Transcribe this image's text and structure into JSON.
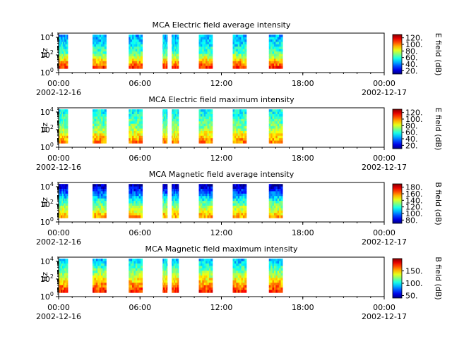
{
  "chart_data": [
    {
      "type": "heatmap",
      "title": "MCA  Electric field average intensity",
      "ylabel": "Hz",
      "yscale": "log",
      "ylim": [
        1,
        30000
      ],
      "yticks": [
        {
          "value": 1,
          "base": "10",
          "exp": "0"
        },
        {
          "value": 100,
          "base": "10",
          "exp": "2"
        },
        {
          "value": 10000,
          "base": "10",
          "exp": "4"
        }
      ],
      "xlim": [
        "2002-12-16 00:00",
        "2002-12-17 00:00"
      ],
      "xticks": [
        {
          "hour": 0,
          "label": "00:00",
          "date": "2002-12-16"
        },
        {
          "hour": 6,
          "label": "06:00",
          "date": ""
        },
        {
          "hour": 12,
          "label": "12:00",
          "date": ""
        },
        {
          "hour": 18,
          "label": "18:00",
          "date": ""
        },
        {
          "hour": 24,
          "label": "00:00",
          "date": "2002-12-17"
        }
      ],
      "minor_tick_hours": 1,
      "data_intervals_utc": [
        [
          "00:00",
          "00:40"
        ],
        [
          "02:30",
          "03:30"
        ],
        [
          "05:10",
          "06:10"
        ],
        [
          "07:40",
          "08:00"
        ],
        [
          "08:20",
          "08:50"
        ],
        [
          "10:20",
          "11:20"
        ],
        [
          "12:50",
          "13:50"
        ],
        [
          "15:30",
          "16:30"
        ]
      ],
      "data_freq_range_hz": [
        3,
        20000
      ],
      "colorbar": {
        "label": "E field (dB)",
        "range": [
          10,
          130
        ],
        "ticks": [
          "20.",
          "40.",
          "60.",
          "80.",
          "100.",
          "120."
        ],
        "tick_values": [
          20,
          40,
          60,
          80,
          100,
          120
        ]
      },
      "intensity_profile": {
        "low_freq": 110,
        "mid_freq": 60,
        "high_freq": 45
      }
    },
    {
      "type": "heatmap",
      "title": "MCA  Electric field maximum intensity",
      "ylabel": "Hz",
      "yscale": "log",
      "ylim": [
        1,
        30000
      ],
      "yticks": [
        {
          "value": 1,
          "base": "10",
          "exp": "0"
        },
        {
          "value": 100,
          "base": "10",
          "exp": "2"
        },
        {
          "value": 10000,
          "base": "10",
          "exp": "4"
        }
      ],
      "xlim": [
        "2002-12-16 00:00",
        "2002-12-17 00:00"
      ],
      "xticks": [
        {
          "hour": 0,
          "label": "00:00",
          "date": "2002-12-16"
        },
        {
          "hour": 6,
          "label": "06:00",
          "date": ""
        },
        {
          "hour": 12,
          "label": "12:00",
          "date": ""
        },
        {
          "hour": 18,
          "label": "18:00",
          "date": ""
        },
        {
          "hour": 24,
          "label": "00:00",
          "date": "2002-12-17"
        }
      ],
      "minor_tick_hours": 1,
      "data_intervals_utc": [
        [
          "00:00",
          "00:40"
        ],
        [
          "02:30",
          "03:30"
        ],
        [
          "05:10",
          "06:10"
        ],
        [
          "07:40",
          "08:00"
        ],
        [
          "08:20",
          "08:50"
        ],
        [
          "10:20",
          "11:20"
        ],
        [
          "12:50",
          "13:50"
        ],
        [
          "15:30",
          "16:30"
        ]
      ],
      "data_freq_range_hz": [
        3,
        20000
      ],
      "colorbar": {
        "label": "E field (dB)",
        "range": [
          10,
          130
        ],
        "ticks": [
          "20.",
          "40.",
          "60.",
          "80.",
          "100.",
          "120."
        ],
        "tick_values": [
          20,
          40,
          60,
          80,
          100,
          120
        ]
      },
      "intensity_profile": {
        "low_freq": 100,
        "mid_freq": 68,
        "high_freq": 55
      }
    },
    {
      "type": "heatmap",
      "title": "MCA  Magnetic field average intensity",
      "ylabel": "Hz",
      "yscale": "log",
      "ylim": [
        1,
        30000
      ],
      "yticks": [
        {
          "value": 1,
          "base": "10",
          "exp": "0"
        },
        {
          "value": 100,
          "base": "10",
          "exp": "2"
        },
        {
          "value": 10000,
          "base": "10",
          "exp": "4"
        }
      ],
      "xlim": [
        "2002-12-16 00:00",
        "2002-12-17 00:00"
      ],
      "xticks": [
        {
          "hour": 0,
          "label": "00:00",
          "date": "2002-12-16"
        },
        {
          "hour": 6,
          "label": "06:00",
          "date": ""
        },
        {
          "hour": 12,
          "label": "12:00",
          "date": ""
        },
        {
          "hour": 18,
          "label": "18:00",
          "date": ""
        },
        {
          "hour": 24,
          "label": "00:00",
          "date": "2002-12-17"
        }
      ],
      "minor_tick_hours": 1,
      "data_intervals_utc": [
        [
          "00:00",
          "00:40"
        ],
        [
          "02:30",
          "03:30"
        ],
        [
          "05:10",
          "06:10"
        ],
        [
          "07:40",
          "08:00"
        ],
        [
          "08:20",
          "08:50"
        ],
        [
          "10:20",
          "11:20"
        ],
        [
          "12:50",
          "13:50"
        ],
        [
          "15:30",
          "16:30"
        ]
      ],
      "data_freq_range_hz": [
        3,
        20000
      ],
      "colorbar": {
        "label": "B field (dB)",
        "range": [
          70,
          190
        ],
        "ticks": [
          "80.",
          "100.",
          "120.",
          "140.",
          "160.",
          "180."
        ],
        "tick_values": [
          80,
          100,
          120,
          140,
          160,
          180
        ]
      },
      "intensity_profile": {
        "low_freq": 155,
        "mid_freq": 120,
        "high_freq": 75
      }
    },
    {
      "type": "heatmap",
      "title": "MCA  Magnetic field maximum intensity",
      "ylabel": "Hz",
      "yscale": "log",
      "ylim": [
        1,
        30000
      ],
      "yticks": [
        {
          "value": 1,
          "base": "10",
          "exp": "0"
        },
        {
          "value": 100,
          "base": "10",
          "exp": "2"
        },
        {
          "value": 10000,
          "base": "10",
          "exp": "4"
        }
      ],
      "xlim": [
        "2002-12-16 00:00",
        "2002-12-17 00:00"
      ],
      "xticks": [
        {
          "hour": 0,
          "label": "00:00",
          "date": "2002-12-16"
        },
        {
          "hour": 6,
          "label": "06:00",
          "date": ""
        },
        {
          "hour": 12,
          "label": "12:00",
          "date": ""
        },
        {
          "hour": 18,
          "label": "18:00",
          "date": ""
        },
        {
          "hour": 24,
          "label": "00:00",
          "date": "2002-12-17"
        }
      ],
      "minor_tick_hours": 1,
      "data_intervals_utc": [
        [
          "00:00",
          "00:40"
        ],
        [
          "02:30",
          "03:30"
        ],
        [
          "05:10",
          "06:10"
        ],
        [
          "07:40",
          "08:00"
        ],
        [
          "08:20",
          "08:50"
        ],
        [
          "10:20",
          "11:20"
        ],
        [
          "12:50",
          "13:50"
        ],
        [
          "15:30",
          "16:30"
        ]
      ],
      "data_freq_range_hz": [
        3,
        20000
      ],
      "colorbar": {
        "label": "B field (dB)",
        "range": [
          40,
          200
        ],
        "ticks": [
          "50.",
          "100.",
          "150."
        ],
        "tick_values": [
          50,
          100,
          150
        ]
      },
      "intensity_profile": {
        "low_freq": 175,
        "mid_freq": 130,
        "high_freq": 90
      }
    }
  ]
}
